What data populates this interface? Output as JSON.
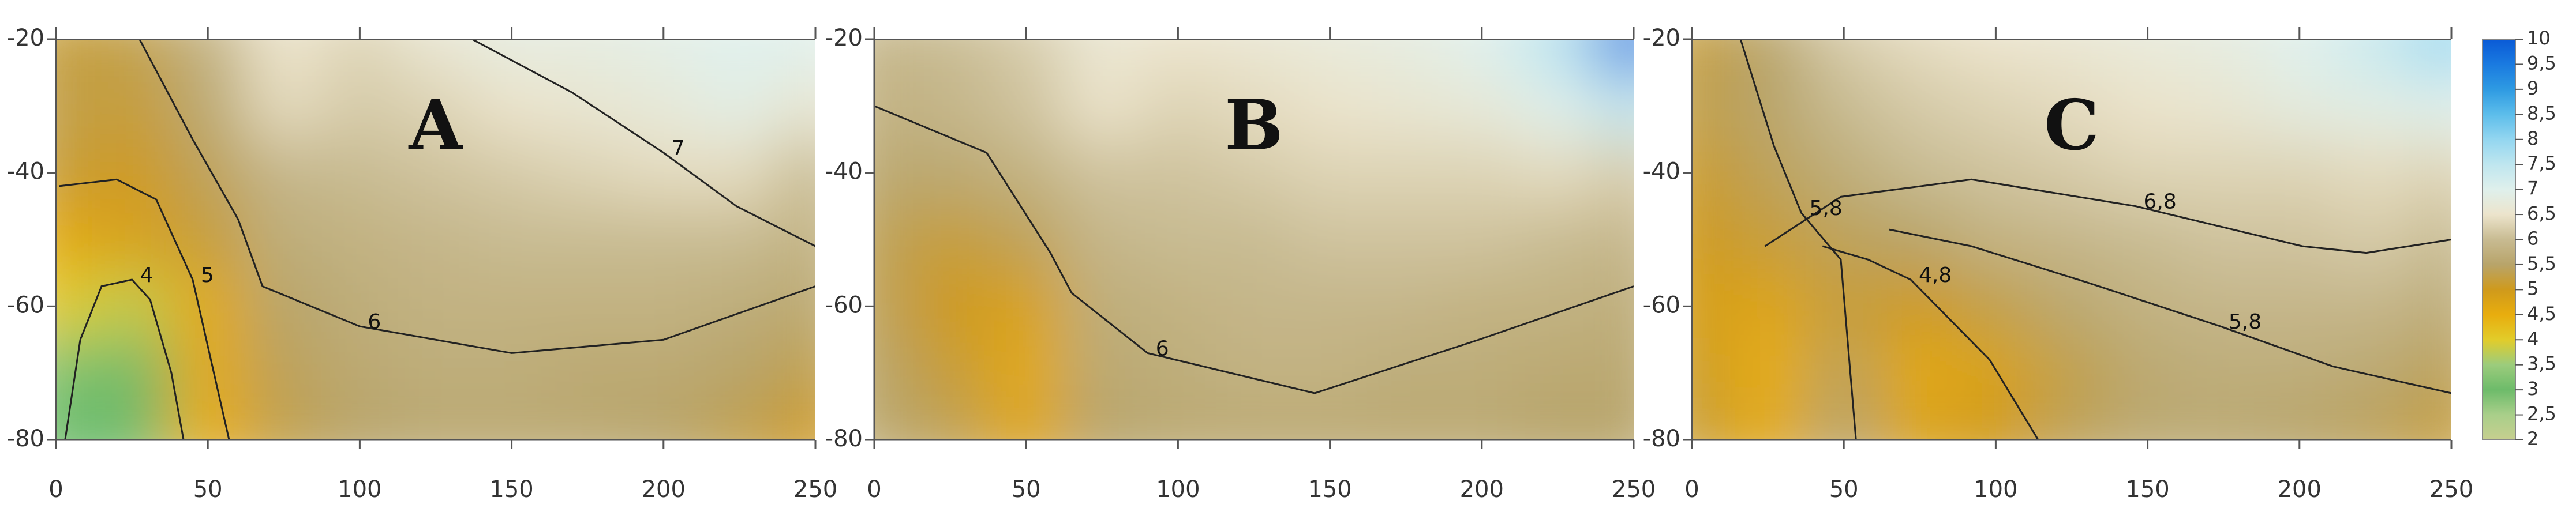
{
  "chart_data": [
    {
      "type": "contour",
      "title": "A",
      "x": [
        0,
        25,
        50,
        75,
        100,
        125,
        150,
        175,
        200,
        225,
        250
      ],
      "y": [
        -20,
        -30,
        -40,
        -50,
        -60,
        -70,
        -80
      ],
      "z": [
        [
          5.2,
          5.3,
          5.8,
          6.5,
          6.3,
          6.6,
          6.8,
          6.8,
          6.9,
          7.0,
          7.0
        ],
        [
          5.3,
          5.2,
          5.6,
          6.4,
          6.2,
          6.3,
          6.5,
          6.6,
          6.7,
          6.9,
          6.6
        ],
        [
          5.2,
          5.0,
          5.4,
          5.9,
          6.0,
          6.1,
          6.2,
          6.3,
          6.4,
          6.4,
          6.0
        ],
        [
          4.6,
          4.8,
          5.2,
          5.7,
          5.8,
          5.9,
          6.0,
          6.0,
          6.0,
          6.0,
          5.8
        ],
        [
          4.0,
          3.8,
          4.6,
          5.5,
          5.7,
          5.8,
          5.8,
          5.8,
          5.8,
          5.7,
          5.6
        ],
        [
          3.2,
          3.0,
          4.6,
          5.4,
          5.6,
          5.7,
          5.7,
          5.6,
          5.6,
          5.5,
          5.3
        ],
        [
          3.0,
          3.0,
          4.5,
          5.3,
          5.5,
          5.6,
          5.6,
          5.6,
          5.5,
          5.3,
          5.0
        ]
      ],
      "levels": [
        7,
        6,
        5,
        4
      ],
      "lines": [
        {
          "x": [
            137,
            170,
            200,
            224,
            250
          ],
          "y": [
            -20,
            -28,
            -37,
            -45,
            -51
          ]
        },
        {
          "x": [
            27.5,
            45,
            60,
            68,
            100,
            150,
            200,
            250
          ],
          "y": [
            -20,
            -35,
            -47,
            -57,
            -63,
            -67,
            -65,
            -57
          ]
        },
        {
          "x": [
            1,
            20,
            33,
            45,
            51,
            57
          ],
          "y": [
            -42,
            -41,
            -44,
            -56,
            -68,
            -80
          ]
        },
        {
          "x": [
            3,
            8,
            15,
            25,
            31,
            38,
            42
          ],
          "y": [
            -80,
            -65,
            -57,
            -56,
            -59,
            -70,
            -80
          ]
        }
      ],
      "xlim": [
        0,
        250
      ],
      "ylim": [
        -80,
        -20
      ],
      "xticks": [
        0,
        50,
        100,
        150,
        200,
        250
      ],
      "yticks": [
        -20,
        -40,
        -60,
        -80
      ]
    },
    {
      "type": "contour",
      "title": "B",
      "x": [
        0,
        25,
        50,
        75,
        100,
        125,
        150,
        175,
        200,
        225,
        250
      ],
      "y": [
        -20,
        -30,
        -40,
        -50,
        -60,
        -70,
        -80
      ],
      "z": [
        [
          5.9,
          6.0,
          6.2,
          6.6,
          6.5,
          6.6,
          6.7,
          6.8,
          7.0,
          7.6,
          9.5
        ],
        [
          5.8,
          5.9,
          6.1,
          6.5,
          6.3,
          6.4,
          6.5,
          6.6,
          6.7,
          7.0,
          7.5
        ],
        [
          5.6,
          5.6,
          5.8,
          6.1,
          6.1,
          6.2,
          6.3,
          6.3,
          6.3,
          6.4,
          6.2
        ],
        [
          5.4,
          5.2,
          5.4,
          5.9,
          6.0,
          6.0,
          6.1,
          6.1,
          6.1,
          6.0,
          5.9
        ],
        [
          5.4,
          5.0,
          4.8,
          5.7,
          5.8,
          5.9,
          5.9,
          5.9,
          5.8,
          5.8,
          5.7
        ],
        [
          5.5,
          5.2,
          4.6,
          5.6,
          5.7,
          5.8,
          5.8,
          5.7,
          5.7,
          5.6,
          5.6
        ],
        [
          5.6,
          5.4,
          4.7,
          5.5,
          5.6,
          5.6,
          5.6,
          5.6,
          5.6,
          5.5,
          5.5
        ]
      ],
      "levels": [
        6
      ],
      "lines": [
        {
          "x": [
            0,
            37,
            58,
            65,
            90,
            145,
            199,
            250
          ],
          "y": [
            -30,
            -37,
            -52,
            -58,
            -67,
            -73,
            -65,
            -57
          ]
        }
      ],
      "xlim": [
        0,
        250
      ],
      "ylim": [
        -80,
        -20
      ],
      "xticks": [
        0,
        50,
        100,
        150,
        200,
        250
      ],
      "yticks": [
        -20,
        -40,
        -60,
        -80
      ]
    },
    {
      "type": "contour",
      "title": "C",
      "x": [
        0,
        25,
        50,
        75,
        100,
        125,
        150,
        175,
        200,
        225,
        250
      ],
      "y": [
        -20,
        -30,
        -40,
        -50,
        -60,
        -70,
        -80
      ],
      "z": [
        [
          5.2,
          5.5,
          6.2,
          6.4,
          6.5,
          6.6,
          6.7,
          6.8,
          7.0,
          7.4,
          8.0
        ],
        [
          5.3,
          5.5,
          6.0,
          6.2,
          6.3,
          6.4,
          6.5,
          6.6,
          6.8,
          6.9,
          7.0
        ],
        [
          5.1,
          5.4,
          5.7,
          6.0,
          6.1,
          6.2,
          6.3,
          6.3,
          6.3,
          6.4,
          6.3
        ],
        [
          5.0,
          5.2,
          5.4,
          5.5,
          5.8,
          5.9,
          6.0,
          6.1,
          6.1,
          6.2,
          6.0
        ],
        [
          4.9,
          4.7,
          5.2,
          5.0,
          5.3,
          5.6,
          5.8,
          5.9,
          5.9,
          5.9,
          5.7
        ],
        [
          5.1,
          4.5,
          5.4,
          4.6,
          4.8,
          5.3,
          5.6,
          5.7,
          5.7,
          5.6,
          5.4
        ],
        [
          5.2,
          4.6,
          5.5,
          4.8,
          5.0,
          5.4,
          5.6,
          5.6,
          5.5,
          5.4,
          5.2
        ]
      ],
      "levels": [
        6.8,
        5.8,
        5.8,
        4.8
      ],
      "level_labels": [
        "6,8",
        "5,8",
        "5,8",
        "4,8"
      ],
      "lines": [
        {
          "x": [
            24,
            49,
            92,
            146,
            201,
            222,
            250
          ],
          "y": [
            -51,
            -43.6,
            -41,
            -45,
            -51,
            -52,
            -50
          ]
        },
        {
          "x": [
            65,
            92,
            130,
            174,
            211,
            250
          ],
          "y": [
            -48.5,
            -51,
            -56.4,
            -63,
            -69,
            -73
          ]
        },
        {
          "x": [
            16,
            27,
            36,
            49,
            54
          ],
          "y": [
            -20,
            -36,
            -46,
            -53,
            -80
          ]
        },
        {
          "x": [
            43,
            58,
            72,
            98,
            114
          ],
          "y": [
            -51,
            -53,
            -56,
            -68,
            -80
          ]
        }
      ],
      "xlim": [
        0,
        250
      ],
      "ylim": [
        -80,
        -20
      ],
      "xticks": [
        0,
        50,
        100,
        150,
        200,
        250
      ],
      "yticks": [
        -20,
        -40,
        -60,
        -80
      ]
    },
    {
      "type": "colorbar",
      "clim": [
        2,
        10
      ],
      "cticks": [
        2,
        {
          "value": 2.5,
          "label": "2,5"
        },
        3,
        {
          "value": 3.5,
          "label": "3,5"
        },
        4,
        {
          "value": 4.5,
          "label": "4,5"
        },
        5,
        {
          "value": 5.5,
          "label": "5,5"
        },
        6,
        {
          "value": 6.5,
          "label": "6,5"
        },
        7,
        {
          "value": 7.5,
          "label": "7,5"
        },
        8,
        {
          "value": 8.5,
          "label": "8,5"
        },
        9,
        {
          "value": 9.5,
          "label": "9,5"
        },
        10
      ],
      "colors": [
        "#c7cf8f",
        "#a9cf8a",
        "#6dbb6a",
        "#9ccc7c",
        "#e2cc2a",
        "#e8ad0e",
        "#cf9a1c",
        "#b8a46a",
        "#c8bb92",
        "#ece4cc",
        "#dff0ec",
        "#bfe6ef",
        "#93d6f0",
        "#5cbdeb",
        "#2e9ae2",
        "#1a7ae0",
        "#0a5ad6"
      ]
    }
  ]
}
